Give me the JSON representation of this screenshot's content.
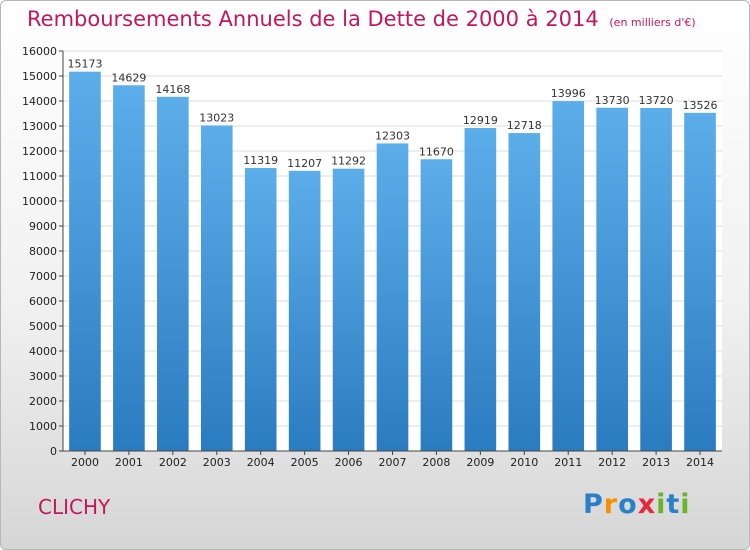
{
  "chart_data": {
    "type": "bar",
    "title": "Remboursements Annuels de la Dette de 2000 à 2014",
    "subtitle": "(en milliers d'€)",
    "categories": [
      "2000",
      "2001",
      "2002",
      "2003",
      "2004",
      "2005",
      "2006",
      "2007",
      "2008",
      "2009",
      "2010",
      "2011",
      "2012",
      "2013",
      "2014"
    ],
    "values": [
      15173,
      14629,
      14168,
      13023,
      11319,
      11207,
      11292,
      12303,
      11670,
      12919,
      12718,
      13996,
      13730,
      13720,
      13526
    ],
    "xlabel": "",
    "ylabel": "",
    "ylim": [
      0,
      16000
    ],
    "ytick_step": 1000,
    "grid": true,
    "bar_color": "#4a9ee0"
  },
  "footer": {
    "town": "CLICHY"
  },
  "logo": {
    "letters": [
      "P",
      "r",
      "o",
      "x",
      "i",
      "t",
      "i"
    ],
    "colors": [
      "#2a7fc9",
      "#f39200",
      "#2a7fc9",
      "#e5283a",
      "#6ab42d",
      "#2a7fc9",
      "#6ab42d"
    ]
  }
}
